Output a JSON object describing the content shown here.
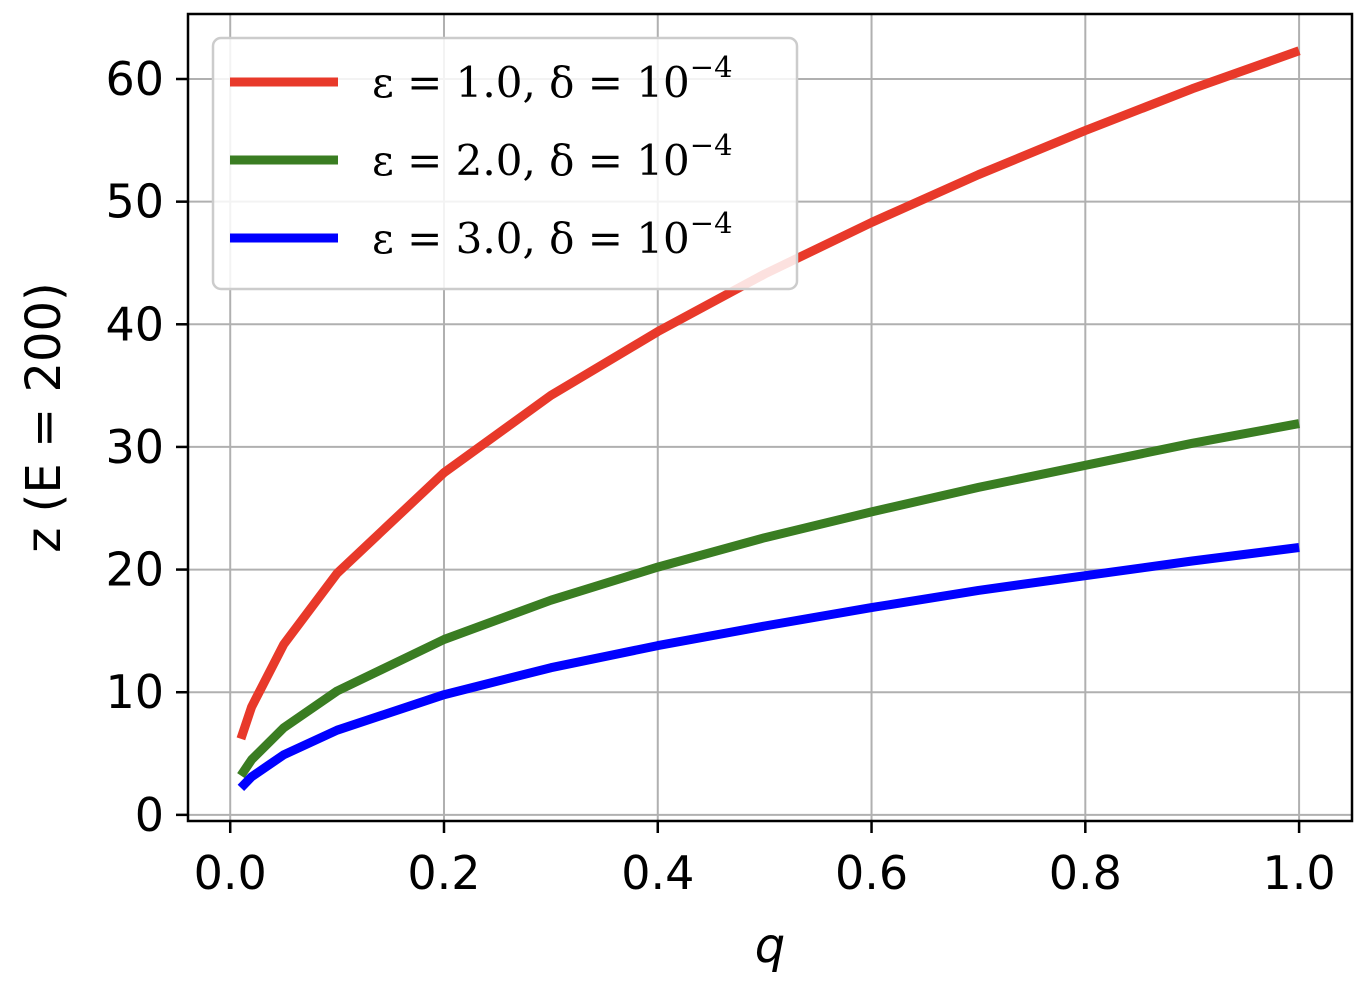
{
  "chart_data": {
    "type": "line",
    "xlabel": "q",
    "ylabel": "z (E = 200)",
    "xlim": [
      -0.0395,
      1.0495
    ],
    "ylim": [
      -0.5,
      65.3
    ],
    "x_ticks": [
      "0.0",
      "0.2",
      "0.4",
      "0.6",
      "0.8",
      "1.0"
    ],
    "x_tick_values": [
      0.0,
      0.2,
      0.4,
      0.6,
      0.8,
      1.0
    ],
    "y_ticks": [
      "0",
      "10",
      "20",
      "30",
      "40",
      "50",
      "60"
    ],
    "y_tick_values": [
      0,
      10,
      20,
      30,
      40,
      50,
      60
    ],
    "grid": true,
    "legend_placement": "top-left",
    "x": [
      0.01,
      0.02,
      0.05,
      0.1,
      0.2,
      0.3,
      0.4,
      0.5,
      0.6,
      0.7,
      0.8,
      0.9,
      1.0
    ],
    "series": [
      {
        "name": "ε = 1.0, δ = 10^−4",
        "legend_main": "ε = 1.0, δ = 10",
        "legend_exp": "−4",
        "color": "#e8392a",
        "values": [
          6.2,
          8.8,
          13.9,
          19.7,
          27.9,
          34.2,
          39.4,
          44.1,
          48.3,
          52.2,
          55.8,
          59.2,
          62.3
        ]
      },
      {
        "name": "ε = 2.0, δ = 10^−4",
        "legend_main": "ε = 2.0, δ = 10",
        "legend_exp": "−4",
        "color": "#3a7d22",
        "values": [
          3.2,
          4.5,
          7.1,
          10.1,
          14.3,
          17.5,
          20.2,
          22.6,
          24.7,
          26.7,
          28.5,
          30.3,
          31.9
        ]
      },
      {
        "name": "ε = 3.0, δ = 10^−4",
        "legend_main": "ε = 3.0, δ = 10",
        "legend_exp": "−4",
        "color": "#0000ff",
        "values": [
          2.2,
          3.1,
          4.9,
          6.9,
          9.8,
          12.0,
          13.8,
          15.4,
          16.9,
          18.3,
          19.5,
          20.7,
          21.8
        ]
      }
    ]
  }
}
